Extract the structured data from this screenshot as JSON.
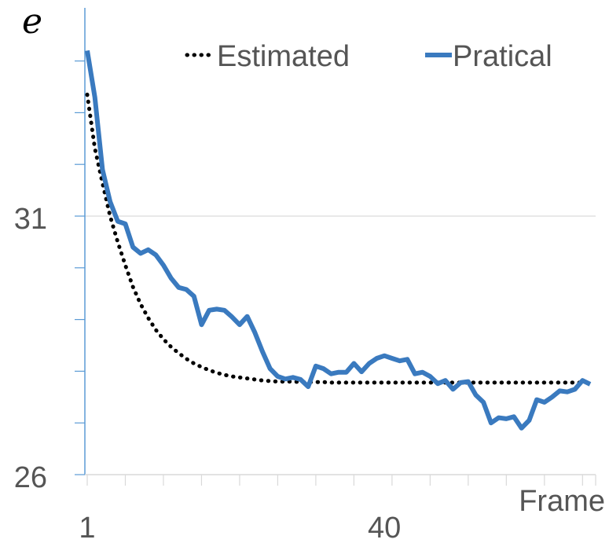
{
  "chart_data": {
    "type": "line",
    "title": "",
    "xlabel": "Frame",
    "ylabel": "e",
    "xlim": [
      1,
      67
    ],
    "ylim": [
      26,
      34.5
    ],
    "x_ticks": [
      1,
      40
    ],
    "y_ticks": [
      26,
      31
    ],
    "gridlines_y": [
      31
    ],
    "grid": true,
    "legend_position": "top-right",
    "colors": {
      "estimated": "#000000",
      "practical": "#3a7abf",
      "axis": "#5b9bd5",
      "grid": "#d9d9d9",
      "text": "#555555"
    },
    "series": [
      {
        "name": "Estimated",
        "style": "dotted",
        "x": [
          1,
          2,
          3,
          4,
          5,
          6,
          7,
          8,
          9,
          10,
          11,
          12,
          13,
          14,
          15,
          16,
          17,
          18,
          19,
          20,
          21,
          22,
          23,
          24,
          25,
          26,
          27,
          28,
          29,
          30,
          31,
          32,
          33,
          34,
          35,
          36,
          37,
          38,
          39,
          40,
          41,
          42,
          43,
          44,
          45,
          46,
          47,
          48,
          49,
          50,
          51,
          52,
          53,
          54,
          55,
          56,
          57,
          58,
          59,
          60,
          61,
          62,
          63,
          64,
          65,
          66,
          67
        ],
        "y": [
          33.35,
          32.31,
          31.64,
          31.0,
          30.5,
          30.05,
          29.63,
          29.3,
          29.03,
          28.8,
          28.62,
          28.47,
          28.35,
          28.24,
          28.15,
          28.08,
          28.02,
          27.97,
          27.93,
          27.9,
          27.88,
          27.86,
          27.84,
          27.82,
          27.81,
          27.8,
          27.8,
          27.8,
          27.79,
          27.79,
          27.79,
          27.79,
          27.78,
          27.78,
          27.78,
          27.78,
          27.78,
          27.78,
          27.78,
          27.78,
          27.78,
          27.78,
          27.78,
          27.78,
          27.78,
          27.78,
          27.78,
          27.78,
          27.78,
          27.78,
          27.78,
          27.78,
          27.78,
          27.78,
          27.78,
          27.78,
          27.78,
          27.78,
          27.78,
          27.78,
          27.78,
          27.78,
          27.78,
          27.78,
          27.78,
          27.78,
          27.78
        ]
      },
      {
        "name": "Pratical",
        "style": "solid",
        "x": [
          1,
          2,
          3,
          4,
          5,
          6,
          7,
          8,
          9,
          10,
          11,
          12,
          13,
          14,
          15,
          16,
          17,
          18,
          19,
          20,
          21,
          22,
          23,
          24,
          25,
          26,
          27,
          28,
          29,
          30,
          31,
          32,
          33,
          34,
          35,
          36,
          37,
          38,
          39,
          40,
          41,
          42,
          43,
          44,
          45,
          46,
          47,
          48,
          49,
          50,
          51,
          52,
          53,
          54,
          55,
          56,
          57,
          58,
          59,
          60,
          61,
          62,
          63,
          64,
          65,
          66,
          67
        ],
        "y": [
          34.2,
          33.3,
          31.9,
          31.28,
          30.9,
          30.85,
          30.4,
          30.28,
          30.35,
          30.25,
          30.05,
          29.8,
          29.62,
          29.58,
          29.45,
          28.9,
          29.18,
          29.2,
          29.18,
          29.05,
          28.9,
          29.06,
          28.75,
          28.38,
          28.05,
          27.9,
          27.85,
          27.88,
          27.84,
          27.7,
          28.1,
          28.05,
          27.95,
          27.98,
          27.98,
          28.15,
          27.99,
          28.15,
          28.25,
          28.3,
          28.25,
          28.2,
          28.23,
          27.95,
          27.98,
          27.9,
          27.76,
          27.82,
          27.65,
          27.78,
          27.8,
          27.54,
          27.4,
          27.0,
          27.1,
          27.08,
          27.12,
          26.9,
          27.05,
          27.45,
          27.4,
          27.5,
          27.62,
          27.6,
          27.65,
          27.82,
          27.75
        ]
      }
    ]
  }
}
